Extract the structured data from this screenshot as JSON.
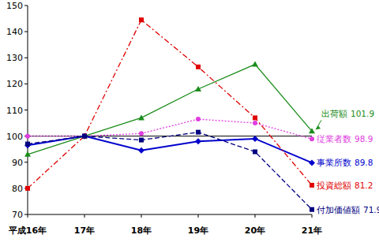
{
  "chart_data": {
    "type": "line",
    "categories": [
      "平成16年",
      "17年",
      "18年",
      "19年",
      "20年",
      "21年"
    ],
    "series": [
      {
        "name": "出荷額",
        "color": "#1a8c1a",
        "marker": "triangle",
        "line_style": "solid",
        "values": [
          93,
          100,
          107,
          118,
          127.5,
          101.9
        ]
      },
      {
        "name": "従業者数",
        "color": "#e03ce0",
        "marker": "circle",
        "line_style": "dotted",
        "values": [
          100,
          100,
          101,
          106.5,
          105,
          98.9
        ]
      },
      {
        "name": "事業所数",
        "color": "#0000cc",
        "marker": "diamond",
        "line_style": "solid",
        "values": [
          96.5,
          100,
          94.5,
          98,
          99,
          89.8
        ]
      },
      {
        "name": "投資総額",
        "color": "#e00000",
        "marker": "square",
        "line_style": "dashdot",
        "values": [
          80,
          100,
          144.5,
          126.5,
          107,
          81.2
        ]
      },
      {
        "name": "付加価値額",
        "color": "#000080",
        "marker": "square",
        "line_style": "dashed",
        "values": [
          97,
          100,
          98.5,
          101.5,
          94,
          71.9
        ]
      }
    ],
    "ylim": [
      70,
      150
    ],
    "yticks": [
      70,
      80,
      90,
      100,
      110,
      120,
      130,
      140,
      150
    ],
    "reference_line": 100,
    "grid": false
  }
}
